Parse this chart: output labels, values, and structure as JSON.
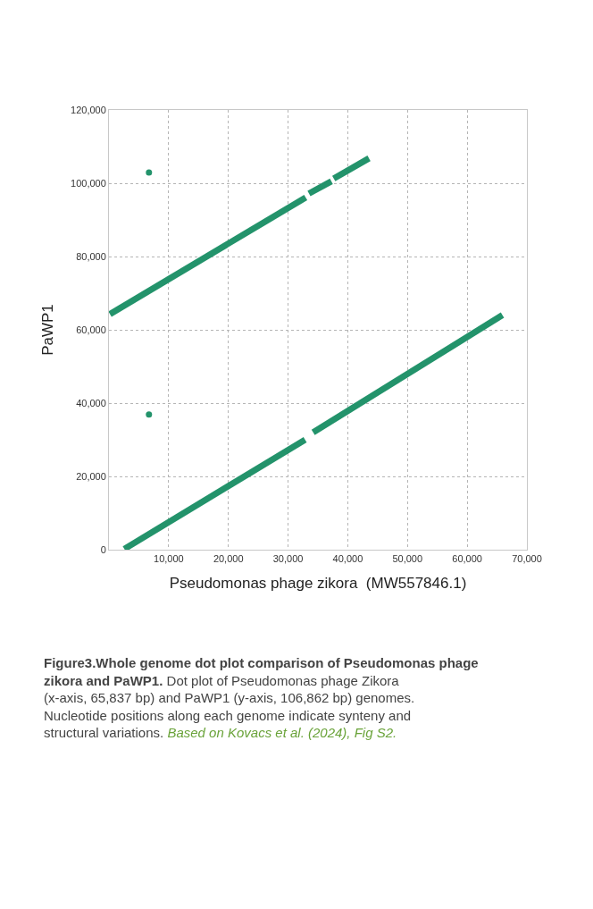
{
  "chart_data": {
    "type": "line",
    "xlabel": "Pseudomonas phage zikora  (MW557846.1)",
    "ylabel": "PaWP1",
    "series": [
      {
        "color": "#23936b",
        "x": [
          2580,
          32850,
          null,
          34200,
          65900
        ],
        "values": [
          200,
          30000,
          null,
          32000,
          64000
        ]
      },
      {
        "color": "#23936b",
        "x": [
          170,
          32950,
          null,
          33500,
          37250,
          null,
          37650,
          43550
        ],
        "values": [
          64300,
          96100,
          null,
          97200,
          100500,
          null,
          101300,
          106800
        ]
      },
      {
        "type": "scatter",
        "color": "#23936b",
        "x": [
          6700,
          6700
        ],
        "values": [
          102900,
          36900
        ]
      }
    ],
    "xlim": [
      0,
      70000
    ],
    "xticks": [
      {
        "value": 0,
        "label": null
      },
      {
        "value": 10000,
        "label": "10,000"
      },
      {
        "value": 20000,
        "label": "20,000"
      },
      {
        "value": 30000,
        "label": "30,000"
      },
      {
        "value": 40000,
        "label": "40,000"
      },
      {
        "value": 50000,
        "label": "50,000"
      },
      {
        "value": 60000,
        "label": "60,000"
      },
      {
        "value": 70000,
        "label": "70,000"
      }
    ],
    "ylim": [
      0,
      120000
    ],
    "yticks": [
      {
        "value": 0,
        "label": "0"
      },
      {
        "value": 20000,
        "label": "20,000"
      },
      {
        "value": 40000,
        "label": "40,000"
      },
      {
        "value": 60000,
        "label": "60,000"
      },
      {
        "value": 80000,
        "label": "80,000"
      },
      {
        "value": 100000,
        "label": "100,000"
      },
      {
        "value": 120000,
        "label": "120,000"
      }
    ],
    "grid": true,
    "marker": "none",
    "annotations": [
      "Figure3.Whole genome dot plot comparison of Pseudomonas phage zikora and PaWP1.",
      "Dot plot of Pseudomonas phage Zikora (x-axis, 65,837 bp) and PaWP1 (y-axis, 106,862 bp) genomes. Nucleotide positions along each genome indicate synteny and structural variations.",
      "Based on Kovacs et al. (2024), Fig S2."
    ]
  }
}
